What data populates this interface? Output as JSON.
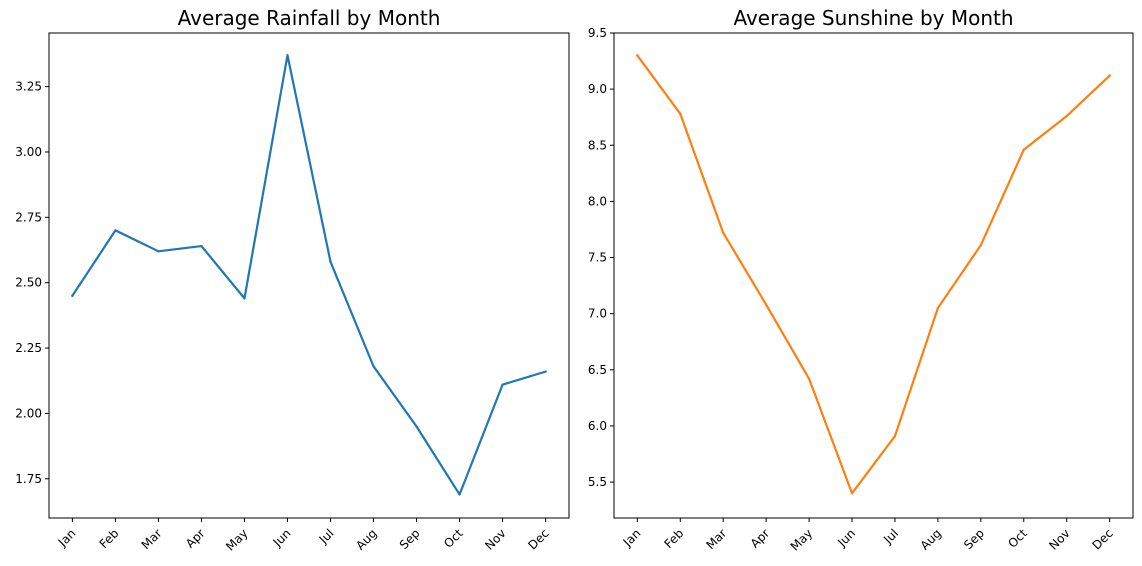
{
  "chart_data": [
    {
      "type": "line",
      "title": "Average Rainfall by Month",
      "xlabel": "",
      "ylabel": "",
      "categories": [
        "Jan",
        "Feb",
        "Mar",
        "Apr",
        "May",
        "Jun",
        "Jul",
        "Aug",
        "Sep",
        "Oct",
        "Nov",
        "Dec"
      ],
      "series": [
        {
          "values": [
            2.45,
            2.7,
            2.62,
            2.64,
            2.44,
            3.37,
            2.58,
            2.18,
            1.95,
            1.69,
            2.11,
            2.16
          ],
          "color": "#1f77b4"
        }
      ],
      "ylim": [
        1.6,
        3.455
      ],
      "yticks": [
        1.75,
        2.0,
        2.25,
        2.5,
        2.75,
        3.0,
        3.25
      ],
      "ytick_labels": [
        "1.75",
        "2.00",
        "2.25",
        "2.50",
        "2.75",
        "3.00",
        "3.25"
      ],
      "grid": false,
      "legend": "none",
      "xtick_rotation": 45
    },
    {
      "type": "line",
      "title": "Average Sunshine by Month",
      "xlabel": "",
      "ylabel": "",
      "categories": [
        "Jan",
        "Feb",
        "Mar",
        "Apr",
        "May",
        "Jun",
        "Jul",
        "Aug",
        "Sep",
        "Oct",
        "Nov",
        "Dec"
      ],
      "series": [
        {
          "values": [
            9.3,
            8.78,
            7.72,
            7.08,
            6.42,
            5.4,
            5.91,
            7.05,
            7.61,
            8.46,
            8.76,
            9.12
          ],
          "color": "#ff7f0e"
        }
      ],
      "ylim": [
        5.18,
        9.5
      ],
      "yticks": [
        5.5,
        6.0,
        6.5,
        7.0,
        7.5,
        8.0,
        8.5,
        9.0,
        9.5
      ],
      "ytick_labels": [
        "5.5",
        "6.0",
        "6.5",
        "7.0",
        "7.5",
        "8.0",
        "8.5",
        "9.0",
        "9.5"
      ],
      "grid": false,
      "legend": "none",
      "xtick_rotation": 45
    }
  ]
}
